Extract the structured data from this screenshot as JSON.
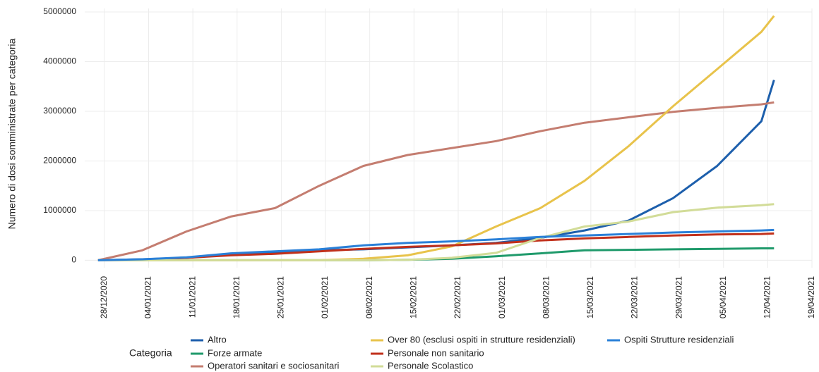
{
  "chart_data": {
    "type": "line",
    "y_label": "Numero di dosi somministrate per categoria",
    "legend_title": "Categoria",
    "legend": "bottom",
    "grid": true,
    "x": [
      "27/12/2020",
      "03/01/2021",
      "10/01/2021",
      "17/01/2021",
      "24/01/2021",
      "31/01/2021",
      "07/02/2021",
      "14/02/2021",
      "21/02/2021",
      "28/02/2021",
      "07/03/2021",
      "14/03/2021",
      "21/03/2021",
      "28/03/2021",
      "04/04/2021",
      "11/04/2021",
      "13/04/2021"
    ],
    "xlim": [
      "26/12/2020",
      "19/04/2021"
    ],
    "xticks": [
      "28/12/2020",
      "04/01/2021",
      "11/01/2021",
      "18/01/2021",
      "25/01/2021",
      "01/02/2021",
      "08/02/2021",
      "15/02/2021",
      "22/02/2021",
      "01/03/2021",
      "08/03/2021",
      "15/03/2021",
      "22/03/2021",
      "29/03/2021",
      "05/04/2021",
      "12/04/2021",
      "19/04/2021"
    ],
    "ylim": [
      -150000,
      5000000
    ],
    "yticks": [
      0,
      1000000,
      2000000,
      3000000,
      4000000,
      5000000
    ],
    "series": [
      {
        "name": "Altro",
        "color": "#1d5fac",
        "values": [
          0,
          20000,
          50000,
          120000,
          150000,
          200000,
          220000,
          260000,
          300000,
          350000,
          450000,
          600000,
          800000,
          1250000,
          1900000,
          2800000,
          3630000
        ]
      },
      {
        "name": "Forze armate",
        "color": "#1f9a6b",
        "values": [
          0,
          0,
          0,
          0,
          0,
          0,
          0,
          10000,
          30000,
          80000,
          140000,
          200000,
          210000,
          220000,
          230000,
          240000,
          240000
        ]
      },
      {
        "name": "Operatori sanitari e sociosanitari",
        "color": "#c47d70",
        "values": [
          0,
          200000,
          580000,
          880000,
          1050000,
          1500000,
          1900000,
          2120000,
          2260000,
          2400000,
          2600000,
          2770000,
          2880000,
          2990000,
          3070000,
          3140000,
          3180000
        ]
      },
      {
        "name": "Over 80 (esclusi ospiti in strutture residenziali)",
        "color": "#e8c34b",
        "values": [
          0,
          0,
          0,
          0,
          0,
          0,
          30000,
          100000,
          280000,
          680000,
          1050000,
          1600000,
          2300000,
          3100000,
          3850000,
          4600000,
          4920000
        ]
      },
      {
        "name": "Personale non sanitario",
        "color": "#c1301b",
        "values": [
          0,
          10000,
          50000,
          100000,
          130000,
          180000,
          230000,
          270000,
          300000,
          340000,
          400000,
          440000,
          470000,
          500000,
          520000,
          530000,
          540000
        ]
      },
      {
        "name": "Personale Scolastico",
        "color": "#d2dc98",
        "values": [
          0,
          0,
          0,
          0,
          0,
          0,
          0,
          10000,
          50000,
          150000,
          450000,
          680000,
          780000,
          970000,
          1060000,
          1110000,
          1130000
        ]
      },
      {
        "name": "Ospiti Strutture residenziali",
        "color": "#2a80d8",
        "values": [
          0,
          20000,
          60000,
          140000,
          180000,
          220000,
          300000,
          350000,
          380000,
          420000,
          470000,
          500000,
          530000,
          560000,
          580000,
          600000,
          610000
        ]
      }
    ]
  }
}
